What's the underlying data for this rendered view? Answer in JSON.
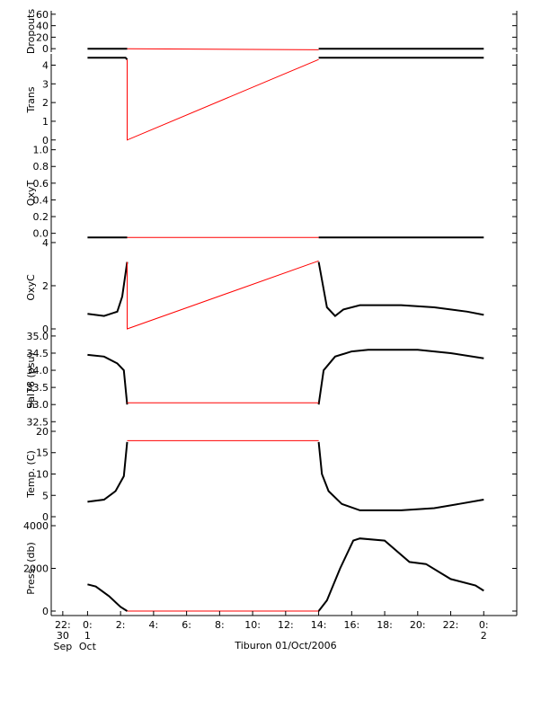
{
  "chart_data": [
    {
      "type": "line",
      "ylabel": "Dropouts",
      "xlim": [
        -2.2,
        26
      ],
      "ylim": [
        -6,
        66
      ],
      "yticks": [
        0,
        20,
        40,
        60
      ],
      "series": [
        {
          "color": "#000000",
          "x": [
            0,
            2.4,
            2.4,
            14,
            24
          ],
          "values": [
            0,
            0,
            null,
            0,
            0
          ]
        },
        {
          "color": "#ff0000",
          "x": [
            2.4,
            14
          ],
          "values": [
            0,
            -2
          ]
        }
      ]
    },
    {
      "type": "line",
      "ylabel": "Trans",
      "xlim": [
        -2.2,
        26
      ],
      "ylim": [
        -0.3,
        4.6
      ],
      "yticks": [
        0,
        1,
        2,
        3,
        4
      ],
      "series": [
        {
          "color": "#000000",
          "x": [
            0,
            2.3,
            2.4,
            2.4,
            14,
            24
          ],
          "values": [
            4.4,
            4.4,
            4.3,
            null,
            4.4,
            4.4
          ]
        },
        {
          "color": "#ff0000",
          "x": [
            2.4,
            2.4,
            14
          ],
          "values": [
            4.3,
            0,
            4.3
          ]
        }
      ]
    },
    {
      "type": "line",
      "ylabel": "OxyT",
      "xlim": [
        -2.2,
        26
      ],
      "ylim": [
        -0.09,
        1.05
      ],
      "yticks": [
        {
          "value": 0,
          "label": "0.0"
        },
        0.2,
        0.4,
        0.6,
        0.8,
        {
          "value": 1,
          "label": "1.0"
        }
      ],
      "series": [
        {
          "color": "#000000",
          "x": [
            0,
            2.4,
            2.4,
            14,
            24
          ],
          "values": [
            -0.05,
            -0.05,
            null,
            -0.05,
            -0.05
          ]
        },
        {
          "color": "#ff0000",
          "x": [
            2.4,
            14
          ],
          "values": [
            -0.05,
            -0.05
          ]
        }
      ]
    },
    {
      "type": "line",
      "ylabel": "OxyC",
      "xlim": [
        -2.2,
        26
      ],
      "ylim": [
        -0.25,
        4.08
      ],
      "yticks": [
        0,
        2,
        4
      ],
      "series": [
        {
          "color": "#000000",
          "x": [
            0,
            1,
            1.8,
            2.1,
            2.4,
            2.4,
            14,
            14.5,
            15,
            15.5,
            16.5,
            19,
            21,
            23,
            24
          ],
          "values": [
            0.7,
            0.6,
            0.8,
            1.5,
            3.1,
            null,
            3.1,
            1,
            0.6,
            0.9,
            1.1,
            1.1,
            1,
            0.8,
            0.65
          ]
        },
        {
          "color": "#ff0000",
          "x": [
            2.4,
            2.4,
            14
          ],
          "values": [
            3.1,
            0,
            3.15
          ]
        }
      ]
    },
    {
      "type": "line",
      "ylabel": "Sal78 (psu)",
      "xlim": [
        -2.2,
        26
      ],
      "ylim": [
        32.35,
        35.05
      ],
      "yticks": [
        32.5,
        {
          "value": 33,
          "label": "33.0"
        },
        33.5,
        {
          "value": 34,
          "label": "34.0"
        },
        34.5,
        {
          "value": 35,
          "label": "35.0"
        }
      ],
      "series": [
        {
          "color": "#000000",
          "x": [
            0,
            1,
            1.8,
            2.2,
            2.4,
            2.4,
            14,
            14.3,
            15,
            16,
            17,
            20,
            22,
            24
          ],
          "values": [
            34.45,
            34.4,
            34.2,
            34,
            33,
            null,
            33,
            34,
            34.4,
            34.55,
            34.6,
            34.6,
            34.5,
            34.35
          ]
        },
        {
          "color": "#ff0000",
          "x": [
            2.4,
            14
          ],
          "values": [
            33.05,
            33.05
          ]
        }
      ]
    },
    {
      "type": "line",
      "ylabel": "Temp. (C)",
      "xlim": [
        -2.2,
        26
      ],
      "ylim": [
        -1.05,
        21.05
      ],
      "yticks": [
        0,
        5,
        10,
        15,
        20
      ],
      "series": [
        {
          "color": "#000000",
          "x": [
            0,
            1,
            1.7,
            2.2,
            2.4,
            2.4,
            14,
            14.2,
            14.6,
            15.4,
            16.5,
            19,
            21,
            22.5,
            24
          ],
          "values": [
            3.5,
            4,
            6,
            9.5,
            17.5,
            null,
            17.5,
            10,
            6,
            3,
            1.5,
            1.5,
            2,
            3,
            4
          ]
        },
        {
          "color": "#ff0000",
          "x": [
            2.4,
            14
          ],
          "values": [
            17.8,
            17.8
          ]
        }
      ]
    },
    {
      "type": "line",
      "ylabel": "Press. (db)",
      "xlabel": "Tiburon 01/Oct/2006",
      "xlim": [
        -2.2,
        26
      ],
      "ylim": [
        -210,
        4210
      ],
      "yticks": [
        0,
        2000,
        4000
      ],
      "xticks": [
        {
          "value": -1.5,
          "label": "22:\n30\nSep"
        },
        {
          "value": 0,
          "label": "0:\n1\nOct"
        },
        {
          "value": 2,
          "label": "2:"
        },
        {
          "value": 4,
          "label": "4:"
        },
        {
          "value": 6,
          "label": "6:"
        },
        {
          "value": 8,
          "label": "8:"
        },
        {
          "value": 10,
          "label": "10:"
        },
        {
          "value": 12,
          "label": "12:"
        },
        {
          "value": 14,
          "label": "14:"
        },
        {
          "value": 16,
          "label": "16:"
        },
        {
          "value": 18,
          "label": "18:"
        },
        {
          "value": 20,
          "label": "20:"
        },
        {
          "value": 22,
          "label": "22:"
        },
        {
          "value": 24,
          "label": "0:\n2"
        }
      ],
      "series": [
        {
          "color": "#000000",
          "x": [
            0,
            0.5,
            1.3,
            2,
            2.4,
            2.4,
            14,
            14.5,
            15.3,
            16.1,
            16.5,
            18,
            19.5,
            20.5,
            22,
            23.5,
            24
          ],
          "values": [
            1250,
            1150,
            700,
            200,
            0,
            null,
            0,
            500,
            2000,
            3300,
            3400,
            3300,
            2300,
            2200,
            1500,
            1200,
            950
          ]
        },
        {
          "color": "#ff0000",
          "x": [
            2.4,
            14
          ],
          "values": [
            0,
            0
          ]
        }
      ]
    }
  ]
}
